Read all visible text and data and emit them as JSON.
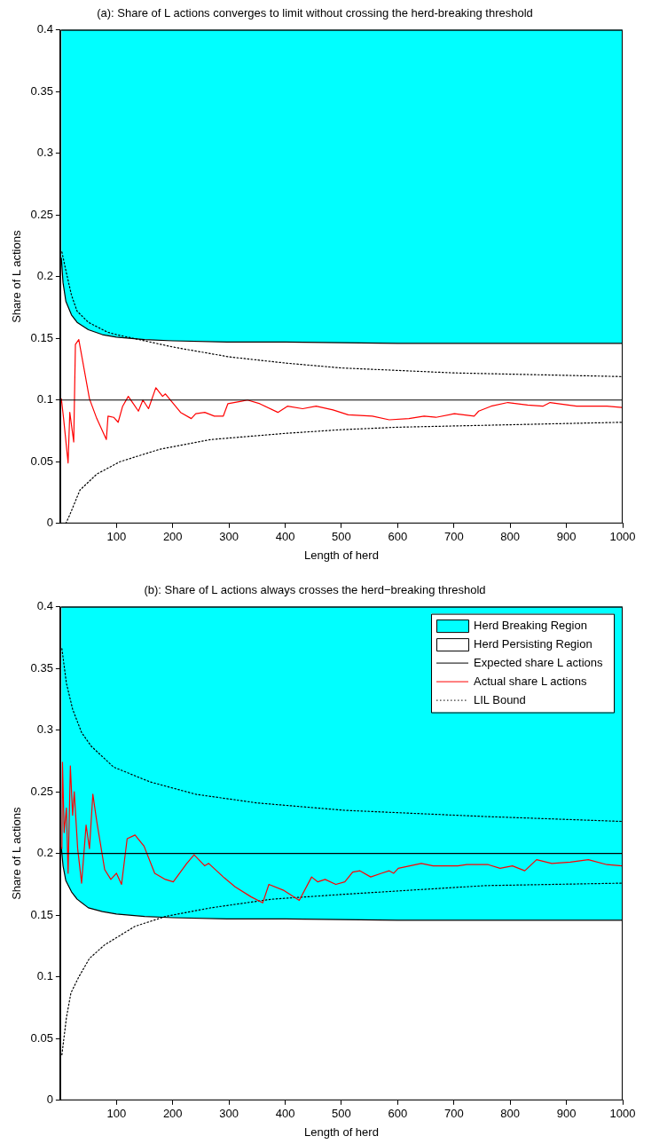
{
  "chart_data": [
    {
      "type": "line",
      "title": "(a): Share of L actions converges to limit without crossing the herd-breaking threshold",
      "xlabel": "Length of herd",
      "ylabel": "Share of L actions",
      "xlim": [
        0,
        1000
      ],
      "xticks": [
        100,
        200,
        300,
        400,
        500,
        600,
        700,
        800,
        900,
        1000
      ],
      "ylim": [
        0,
        0.4
      ],
      "yticks": [
        0,
        0.05,
        0.1,
        0.15,
        0.2,
        0.25,
        0.3,
        0.35,
        0.4
      ],
      "stacked": true,
      "marker": "none",
      "series": [
        {
          "type": "area",
          "color": "#ffffff",
          "x": [
            2,
            5,
            10,
            20,
            30,
            50,
            75,
            100,
            150,
            200,
            300,
            400,
            600,
            800,
            1000
          ],
          "values": [
            0.215,
            0.195,
            0.18,
            0.169,
            0.163,
            0.157,
            0.153,
            0.151,
            0.149,
            0.148,
            0.147,
            0.147,
            0.146,
            0.146,
            0.146
          ]
        },
        {
          "type": "area",
          "color": "#00ffff",
          "x": [
            2,
            5,
            10,
            20,
            30,
            50,
            75,
            100,
            150,
            200,
            300,
            400,
            600,
            800,
            1000
          ],
          "values": [
            0.185,
            0.205,
            0.22,
            0.231,
            0.237,
            0.243,
            0.247,
            0.249,
            0.251,
            0.252,
            0.253,
            0.253,
            0.254,
            0.254,
            0.254
          ]
        },
        {
          "type": "line",
          "color": "#000000",
          "line_style": "solid",
          "x": [
            1,
            1000
          ],
          "values": [
            0.1,
            0.1
          ]
        },
        {
          "type": "line",
          "color": "#ff0000",
          "line_style": "solid",
          "x": [
            2,
            6,
            14,
            17,
            24,
            27,
            33,
            52,
            65,
            82,
            85,
            95,
            103,
            111,
            121,
            130,
            139,
            147,
            157,
            170,
            182,
            187,
            214,
            233,
            241,
            257,
            274,
            290,
            298,
            322,
            333,
            355,
            387,
            404,
            431,
            455,
            485,
            512,
            555,
            585,
            620,
            647,
            668,
            701,
            736,
            744,
            766,
            796,
            831,
            858,
            871,
            918,
            972,
            999
          ],
          "values": [
            0.101,
            0.085,
            0.049,
            0.09,
            0.066,
            0.145,
            0.149,
            0.101,
            0.085,
            0.068,
            0.087,
            0.086,
            0.082,
            0.095,
            0.103,
            0.097,
            0.091,
            0.1,
            0.093,
            0.11,
            0.103,
            0.105,
            0.09,
            0.085,
            0.089,
            0.09,
            0.087,
            0.087,
            0.097,
            0.099,
            0.1,
            0.097,
            0.09,
            0.095,
            0.093,
            0.095,
            0.092,
            0.088,
            0.087,
            0.084,
            0.085,
            0.087,
            0.086,
            0.089,
            0.087,
            0.091,
            0.095,
            0.098,
            0.096,
            0.095,
            0.098,
            0.095,
            0.095,
            0.094
          ]
        },
        {
          "type": "line",
          "color": "#000000",
          "line_style": "dotted",
          "x": [
            3,
            10,
            20,
            30,
            50,
            84,
            100,
            200,
            300,
            400,
            500,
            600,
            700,
            800,
            900,
            1000
          ],
          "values": [
            0.22,
            0.205,
            0.185,
            0.172,
            0.163,
            0.155,
            0.153,
            0.143,
            0.135,
            0.13,
            0.126,
            0.124,
            0.122,
            0.121,
            0.12,
            0.119
          ]
        },
        {
          "type": "line",
          "color": "#000000",
          "line_style": "dotted",
          "x": [
            10,
            17,
            35,
            65,
            106,
            176,
            268,
            400,
            500,
            600,
            700,
            800,
            900,
            1000
          ],
          "values": [
            0,
            0.007,
            0.027,
            0.04,
            0.05,
            0.06,
            0.068,
            0.073,
            0.076,
            0.078,
            0.079,
            0.08,
            0.081,
            0.082
          ]
        }
      ]
    },
    {
      "type": "line",
      "title": "(b): Share of L actions always crosses the herd−breaking threshold",
      "xlabel": "Length of herd",
      "ylabel": "Share of L actions",
      "xlim": [
        0,
        1000
      ],
      "xticks": [
        100,
        200,
        300,
        400,
        500,
        600,
        700,
        800,
        900,
        1000
      ],
      "ylim": [
        0,
        0.4
      ],
      "yticks": [
        0,
        0.05,
        0.1,
        0.15,
        0.2,
        0.25,
        0.3,
        0.35,
        0.4
      ],
      "stacked": true,
      "marker": "none",
      "legend": "top right",
      "series": [
        {
          "type": "area",
          "name": "Herd Persisting Region",
          "color": "#ffffff",
          "x": [
            2,
            5,
            10,
            20,
            30,
            50,
            75,
            100,
            150,
            200,
            300,
            400,
            600,
            800,
            1000
          ],
          "values": [
            0.205,
            0.19,
            0.178,
            0.169,
            0.163,
            0.156,
            0.153,
            0.151,
            0.149,
            0.148,
            0.147,
            0.147,
            0.146,
            0.146,
            0.146
          ]
        },
        {
          "type": "area",
          "name": "Herd Breaking Region",
          "color": "#00ffff",
          "x": [
            2,
            5,
            10,
            20,
            30,
            50,
            75,
            100,
            150,
            200,
            300,
            400,
            600,
            800,
            1000
          ],
          "values": [
            0.195,
            0.21,
            0.222,
            0.231,
            0.237,
            0.244,
            0.247,
            0.249,
            0.251,
            0.252,
            0.253,
            0.253,
            0.254,
            0.254,
            0.254
          ]
        },
        {
          "type": "line",
          "name": "Expected share L actions",
          "color": "#000000",
          "line_style": "solid",
          "x": [
            1,
            1000
          ],
          "values": [
            0.2,
            0.2
          ]
        },
        {
          "type": "line",
          "name": "Actual share L actions",
          "color": "#ff0000",
          "line_style": "solid",
          "x": [
            3,
            4,
            7,
            11,
            14,
            18,
            22,
            25,
            31,
            38,
            46,
            52,
            58,
            65,
            79,
            90,
            100,
            109,
            119,
            133,
            149,
            168,
            187,
            201,
            225,
            238,
            257,
            264,
            290,
            311,
            339,
            360,
            371,
            398,
            425,
            447,
            458,
            471,
            490,
            506,
            520,
            533,
            552,
            571,
            585,
            593,
            601,
            642,
            663,
            707,
            723,
            761,
            782,
            804,
            826,
            847,
            874,
            907,
            939,
            972,
            999
          ],
          "values": [
            0.204,
            0.274,
            0.217,
            0.237,
            0.184,
            0.271,
            0.231,
            0.25,
            0.204,
            0.176,
            0.223,
            0.204,
            0.248,
            0.226,
            0.187,
            0.179,
            0.184,
            0.175,
            0.212,
            0.215,
            0.206,
            0.184,
            0.179,
            0.177,
            0.192,
            0.199,
            0.19,
            0.192,
            0.181,
            0.173,
            0.165,
            0.16,
            0.175,
            0.17,
            0.162,
            0.181,
            0.177,
            0.179,
            0.175,
            0.177,
            0.185,
            0.186,
            0.181,
            0.184,
            0.186,
            0.184,
            0.188,
            0.192,
            0.19,
            0.19,
            0.191,
            0.191,
            0.188,
            0.19,
            0.186,
            0.195,
            0.192,
            0.193,
            0.195,
            0.191,
            0.19
          ]
        },
        {
          "type": "line",
          "name": "LIL Bound",
          "color": "#000000",
          "line_style": "dotted",
          "x": [
            3,
            11,
            22,
            38,
            55,
            95,
            160,
            241,
            350,
            506,
            755,
            1000
          ],
          "values": [
            0.366,
            0.338,
            0.317,
            0.298,
            0.287,
            0.27,
            0.258,
            0.248,
            0.241,
            0.235,
            0.23,
            0.226
          ]
        },
        {
          "type": "line",
          "color": "#000000",
          "line_style": "dotted",
          "x": [
            3,
            11,
            19,
            33,
            52,
            79,
            133,
            187,
            268,
            376,
            506,
            755,
            1000
          ],
          "values": [
            0.037,
            0.067,
            0.087,
            0.1,
            0.115,
            0.126,
            0.141,
            0.149,
            0.156,
            0.163,
            0.167,
            0.174,
            0.176
          ]
        }
      ]
    }
  ]
}
